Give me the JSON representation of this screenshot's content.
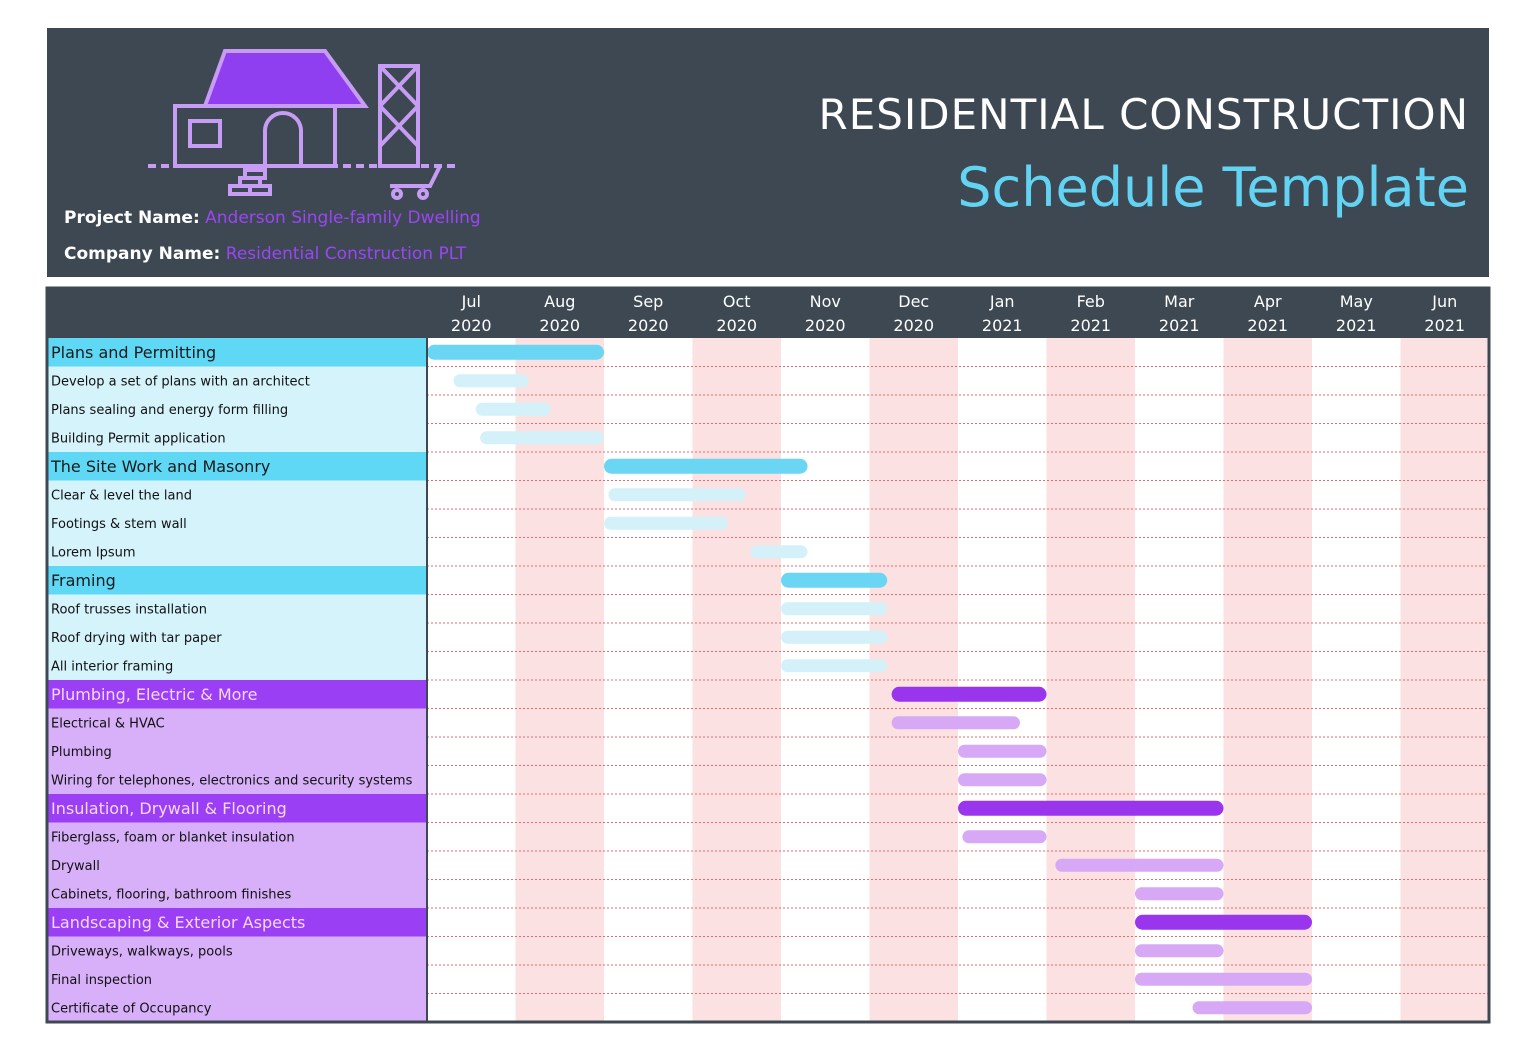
{
  "header": {
    "title": "RESIDENTIAL CONSTRUCTION",
    "subtitle": "Schedule Template",
    "project_label": "Project Name:",
    "project_name": "Anderson Single-family Dwelling",
    "company_label": "Company Name:",
    "company_name": "Residential Construction PLT"
  },
  "chart_data": {
    "type": "gantt",
    "xlim": [
      0,
      12
    ],
    "xticks": [
      {
        "value": 0,
        "label": "Jul\n2020"
      },
      {
        "value": 1,
        "label": "Aug\n2020"
      },
      {
        "value": 2,
        "label": "Sep\n2020"
      },
      {
        "value": 3,
        "label": "Oct\n2020"
      },
      {
        "value": 4,
        "label": "Nov\n2020"
      },
      {
        "value": 5,
        "label": "Dec\n2020"
      },
      {
        "value": 6,
        "label": "Jan\n2021"
      },
      {
        "value": 7,
        "label": "Feb\n2021"
      },
      {
        "value": 8,
        "label": "Mar\n2021"
      },
      {
        "value": 9,
        "label": "Apr\n2021"
      },
      {
        "value": 10,
        "label": "May\n2021"
      },
      {
        "value": 11,
        "label": "Jun\n2021"
      }
    ],
    "band_colors": [
      "#ffffff",
      "#fbe1e1"
    ],
    "groups": [
      {
        "name": "Plans and Permitting",
        "start": 0,
        "end": 2,
        "color": "#5fd8f6",
        "text_color": "#1a1a1a",
        "task_color": "#d5f3fb",
        "bar_color": "#6ad6f4",
        "task_bar_color": "#d4f1fa",
        "tasks": [
          {
            "name": "Develop a set of plans with an architect",
            "start": 0.3,
            "end": 1.15
          },
          {
            "name": "Plans sealing and energy form filling",
            "start": 0.55,
            "end": 1.4
          },
          {
            "name": "Building Permit application",
            "start": 0.6,
            "end": 2
          }
        ]
      },
      {
        "name": "The Site Work and Masonry",
        "start": 2,
        "end": 4.3,
        "color": "#5fd8f6",
        "text_color": "#1a1a1a",
        "task_color": "#d5f3fb",
        "bar_color": "#6ad6f4",
        "task_bar_color": "#d4f1fa",
        "tasks": [
          {
            "name": "Clear & level the land",
            "start": 2.05,
            "end": 3.6
          },
          {
            "name": "Footings & stem wall",
            "start": 2,
            "end": 3.4
          },
          {
            "name": "Lorem Ipsum",
            "start": 3.65,
            "end": 4.3
          }
        ]
      },
      {
        "name": "Framing",
        "start": 4,
        "end": 5.2,
        "color": "#5fd8f6",
        "text_color": "#1a1a1a",
        "task_color": "#d5f3fb",
        "bar_color": "#6ad6f4",
        "task_bar_color": "#d4f1fa",
        "tasks": [
          {
            "name": "Roof trusses installation",
            "start": 4,
            "end": 5.2
          },
          {
            "name": "Roof drying with tar paper",
            "start": 4,
            "end": 5.2
          },
          {
            "name": "All interior framing",
            "start": 4,
            "end": 5.2
          }
        ]
      },
      {
        "name": "Plumbing, Electric & More",
        "start": 5.25,
        "end": 7,
        "color": "#9b3ff5",
        "text_color": "#f6d8ff",
        "task_color": "#d8b0fa",
        "bar_color": "#9a35ee",
        "task_bar_color": "#d6a8f6",
        "tasks": [
          {
            "name": "Electrical & HVAC",
            "start": 5.25,
            "end": 6.7
          },
          {
            "name": "Plumbing",
            "start": 6,
            "end": 7
          },
          {
            "name": "Wiring for telephones, electronics and security systems",
            "start": 6,
            "end": 7
          }
        ]
      },
      {
        "name": "Insulation, Drywall & Flooring",
        "start": 6,
        "end": 9,
        "color": "#9b3ff5",
        "text_color": "#f6d8ff",
        "task_color": "#d8b0fa",
        "bar_color": "#9a35ee",
        "task_bar_color": "#d6a8f6",
        "tasks": [
          {
            "name": "Fiberglass, foam or blanket insulation",
            "start": 6.05,
            "end": 7
          },
          {
            "name": "Drywall",
            "start": 7.1,
            "end": 9
          },
          {
            "name": "Cabinets, flooring, bathroom finishes",
            "start": 8,
            "end": 9
          }
        ]
      },
      {
        "name": "Landscaping & Exterior Aspects",
        "start": 8,
        "end": 10,
        "color": "#9b3ff5",
        "text_color": "#f6d8ff",
        "task_color": "#d8b0fa",
        "bar_color": "#9a35ee",
        "task_bar_color": "#d6a8f6",
        "tasks": [
          {
            "name": "Driveways, walkways, pools",
            "start": 8,
            "end": 9
          },
          {
            "name": "Final inspection",
            "start": 8,
            "end": 10
          },
          {
            "name": "Certificate of Occupancy",
            "start": 8.65,
            "end": 10
          }
        ]
      }
    ]
  }
}
